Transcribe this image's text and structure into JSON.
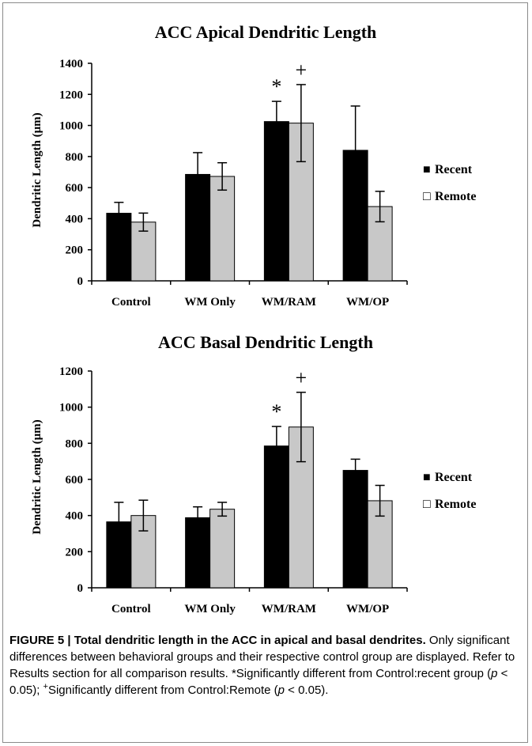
{
  "chart_data": [
    {
      "type": "bar",
      "title": "ACC Apical Dendritic Length",
      "ylabel": "Dendritic Length (μm)",
      "ylim": [
        0,
        1400
      ],
      "yticks": [
        "0",
        "200",
        "400",
        "600",
        "800",
        "1000",
        "1200",
        "1400"
      ],
      "categories": [
        "Control",
        "WM Only",
        "WM/RAM",
        "WM/OP"
      ],
      "series": [
        {
          "name": "Recent",
          "color": "#000000",
          "values": [
            435,
            685,
            1025,
            840
          ],
          "errors": [
            70,
            140,
            130,
            285
          ]
        },
        {
          "name": "Remote",
          "color": "#c8c8c8",
          "values": [
            378,
            672,
            1015,
            478
          ],
          "errors": [
            58,
            88,
            248,
            98
          ]
        }
      ],
      "annotations": [
        {
          "text": "*",
          "category": 2,
          "series": 0
        },
        {
          "text": "+",
          "category": 2,
          "series": 1
        }
      ],
      "legend": "right",
      "grid": false
    },
    {
      "type": "bar",
      "title": "ACC Basal Dendritic Length",
      "ylabel": "Dendritic Length (μm)",
      "ylim": [
        0,
        1200
      ],
      "yticks": [
        "0",
        "200",
        "400",
        "600",
        "800",
        "1000",
        "1200"
      ],
      "categories": [
        "Control",
        "WM Only",
        "WM/RAM",
        "WM/OP"
      ],
      "series": [
        {
          "name": "Recent",
          "color": "#000000",
          "values": [
            365,
            388,
            785,
            650
          ],
          "errors": [
            108,
            60,
            108,
            62
          ]
        },
        {
          "name": "Remote",
          "color": "#c8c8c8",
          "values": [
            400,
            435,
            890,
            482
          ],
          "errors": [
            85,
            38,
            192,
            85
          ]
        }
      ],
      "annotations": [
        {
          "text": "*",
          "category": 2,
          "series": 0
        },
        {
          "text": "+",
          "category": 2,
          "series": 1
        }
      ],
      "legend": "right",
      "grid": false
    }
  ],
  "legend_markers": {
    "recent": "■",
    "remote": "□"
  },
  "caption": {
    "heading": "FIGURE 5 | Total dendritic length in the ACC in apical and basal dendrites.",
    "body_1": " Only significant differences between behavioral groups and their respective control group are displayed. Refer to Results section for all comparison results. *Significantly different from Control:recent group (",
    "p1": "p",
    "body_2": " < 0.05); ",
    "plus": "+",
    "body_3": "Significantly different from Control:Remote (",
    "p2": "p",
    "body_4": " < 0.05)."
  }
}
